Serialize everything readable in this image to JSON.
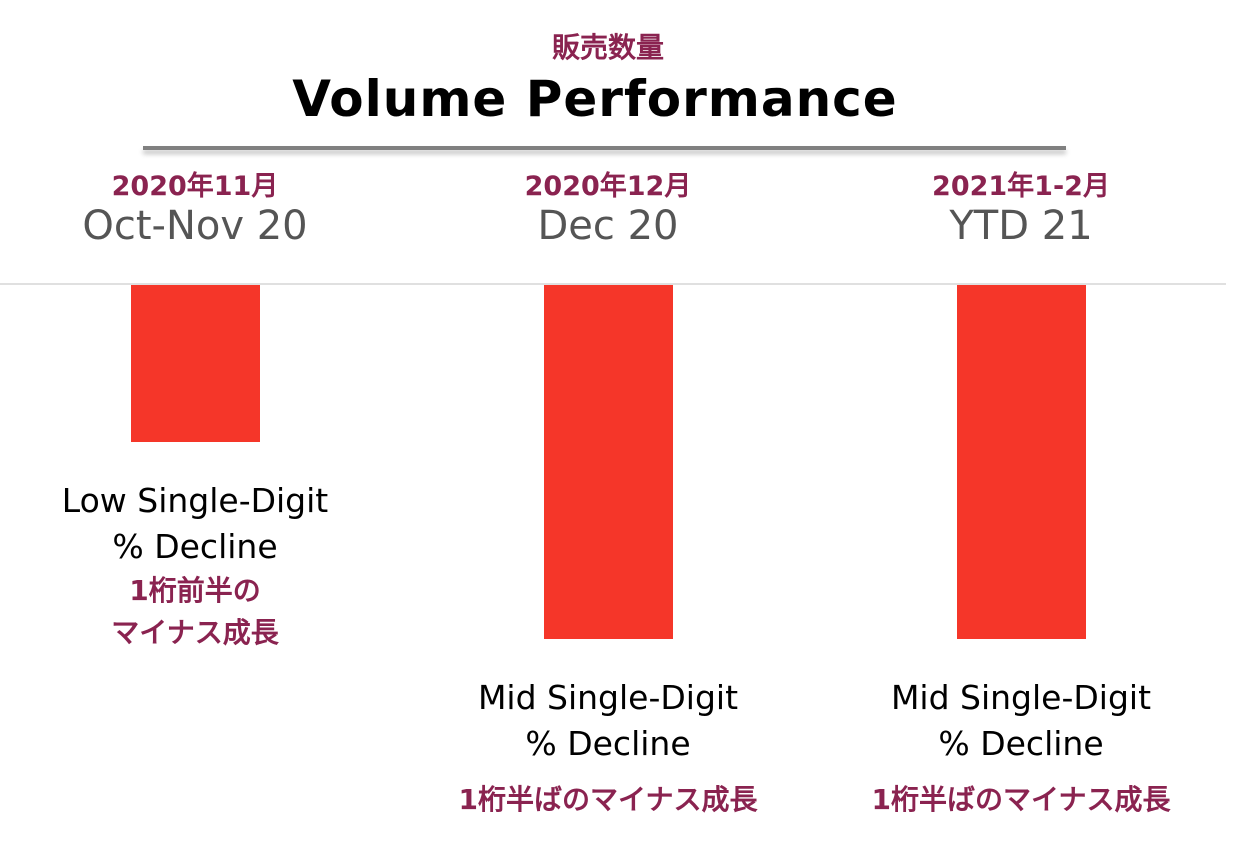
{
  "header": {
    "subtitle_jp": "販売数量",
    "title": "Volume Performance"
  },
  "chart_data": {
    "type": "bar",
    "title": "Volume Performance",
    "subtitle": "販売数量",
    "categories": [
      "Oct-Nov 20",
      "Dec 20",
      "YTD 21"
    ],
    "categories_jp": [
      "2020年11月",
      "2020年12月",
      "2021年1-2月"
    ],
    "values": [
      -2,
      -4.5,
      -4.5
    ],
    "value_units": "approx. % decline (qualitative, no axis shown)",
    "labels_en": [
      [
        "Low Single-Digit",
        "% Decline"
      ],
      [
        "Mid Single-Digit",
        "% Decline"
      ],
      [
        "Mid Single-Digit",
        "% Decline"
      ]
    ],
    "labels_jp": [
      [
        "1桁前半の",
        "マイナス成長"
      ],
      [
        "1桁半ばのマイナス成長"
      ],
      [
        "1桁半ばのマイナス成長"
      ]
    ],
    "xlabel": "",
    "ylabel": "",
    "grid": false,
    "bar_color": "#f53629"
  }
}
